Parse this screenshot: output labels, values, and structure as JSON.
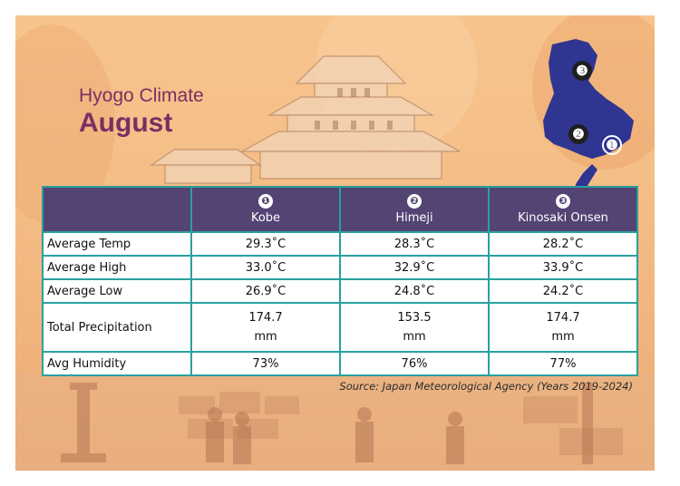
{
  "header": {
    "subtitle": "Hyogo Climate",
    "title": "August"
  },
  "map": {
    "markers": [
      "❸",
      "❷",
      "❶"
    ]
  },
  "table": {
    "columns": [
      {
        "num": "❶",
        "name": "Kobe"
      },
      {
        "num": "❷",
        "name": "Himeji"
      },
      {
        "num": "❸",
        "name": "Kinosaki Onsen"
      }
    ],
    "rows": [
      {
        "label": "Average Temp",
        "values": [
          "29.3˚C",
          "28.3˚C",
          "28.2˚C"
        ]
      },
      {
        "label": "Average High",
        "values": [
          "33.0˚C",
          "32.9˚C",
          "33.9˚C"
        ]
      },
      {
        "label": "Average Low",
        "values": [
          "26.9˚C",
          "24.8˚C",
          "24.2˚C"
        ]
      },
      {
        "label": "Total Precipitation",
        "values": [
          [
            "174.7",
            "mm"
          ],
          [
            "153.5",
            "mm"
          ],
          [
            "174.7",
            "mm"
          ]
        ]
      },
      {
        "label": "Avg Humidity",
        "values": [
          "73%",
          "76%",
          "77%"
        ]
      }
    ]
  },
  "source": "Source: Japan Meteorological Agency (Years 2019-2024)",
  "colors": {
    "title": "#7a2f63",
    "header_bg": "#534474",
    "grid": "#2aa0a0",
    "map": "#2f3590",
    "background": "#f4bd86"
  }
}
